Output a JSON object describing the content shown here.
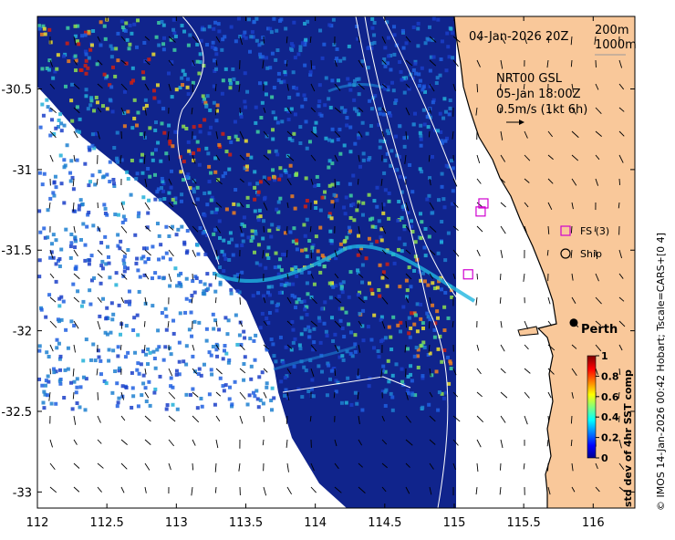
{
  "map": {
    "date_label": "04-Jan-2026 20Z",
    "isobaths": [
      "200m",
      "1000m"
    ],
    "current_source": "NRT00 GSL",
    "current_time": "05-Jan 18:00Z",
    "scale_label": "0.5m/s (1kt 6h)",
    "city": "Perth",
    "legend": [
      {
        "label": "FS (3)",
        "symbol": "square",
        "color": "#d000d0"
      },
      {
        "label": "Ship",
        "symbol": "circle",
        "color": "#000000"
      }
    ],
    "credit": "© IMOS 14-Jan-2026 00:42 Hobart; Tscale=CARS+[0 4]",
    "land_color": "#f9c89a",
    "ocean_color": "#10248c"
  },
  "chart_data": {
    "type": "heatmap",
    "title": "04-Jan-2026 20Z",
    "x_label": "",
    "y_label": "",
    "xlim": [
      112,
      116.3
    ],
    "ylim": [
      -33.1,
      -30.05
    ],
    "x_ticks": [
      "112",
      "112.5",
      "113",
      "113.5",
      "114",
      "114.5",
      "115",
      "115.5",
      "116"
    ],
    "y_ticks": [
      "-30.5",
      "-31",
      "-31.5",
      "-32",
      "-32.5",
      "-33"
    ],
    "colorbar": {
      "label": "std dev of 4hr SST comp",
      "ticks": [
        "0",
        "0.2",
        "0.4",
        "0.6",
        "0.8",
        "1"
      ],
      "range": [
        0,
        1
      ]
    },
    "fs_floats": [
      {
        "lon": 115.21,
        "lat": -31.21
      },
      {
        "lon": 115.19,
        "lat": -31.26
      },
      {
        "lon": 115.1,
        "lat": -31.65
      }
    ],
    "ship": {
      "lon": 115.86,
      "lat": -31.95
    }
  }
}
